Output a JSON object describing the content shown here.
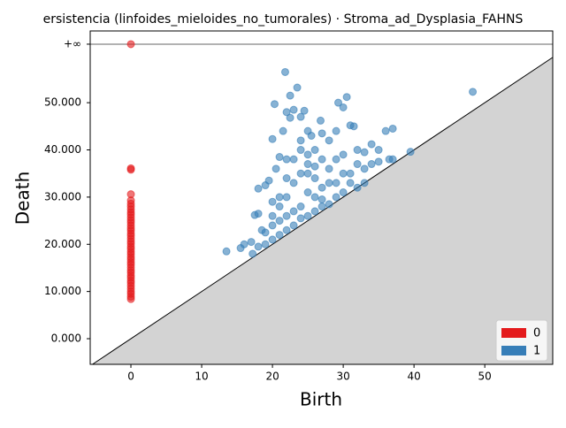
{
  "chart_data": {
    "type": "scatter",
    "title": "ersistencia (linfoides_mieloides_no_tumorales) · Stroma_ad_Dysplasia_FAHNS",
    "x_label": "Birth",
    "y_label": "Death",
    "xlim": [
      -5.75,
      59.6
    ],
    "ylim": [
      -5.43,
      65.2
    ],
    "xticks": [
      0,
      10,
      20,
      30,
      40,
      50
    ],
    "yticks": [
      {
        "value": 0,
        "label": "0.000"
      },
      {
        "value": 10,
        "label": "10.000"
      },
      {
        "value": 20,
        "label": "20.000"
      },
      {
        "value": 30,
        "label": "30.000"
      },
      {
        "value": 40,
        "label": "40.000"
      },
      {
        "value": 50,
        "label": "50.000"
      }
    ],
    "infinity": {
      "value": 62.4,
      "label": "+∞"
    },
    "legend": "lower right",
    "series": [
      {
        "name": "0",
        "color": "#e41a1c",
        "x": [
          0,
          0,
          0,
          0,
          0,
          0,
          0,
          0,
          0,
          0,
          0,
          0,
          0,
          0,
          0,
          0,
          0,
          0,
          0,
          0,
          0,
          0,
          0,
          0,
          0,
          0,
          0,
          0,
          0,
          0,
          0,
          0,
          0,
          0,
          0,
          0,
          0,
          0,
          0,
          0,
          0,
          0
        ],
        "values": [
          8.4,
          8.9,
          9.5,
          10,
          10.6,
          11.2,
          11.8,
          12.3,
          12.9,
          13.4,
          14,
          14.5,
          15.1,
          15.7,
          16.2,
          16.8,
          17.3,
          17.9,
          18.4,
          19,
          19.5,
          20.1,
          20.6,
          21.2,
          21.8,
          22.3,
          22.9,
          23.4,
          24,
          24.6,
          25.1,
          25.7,
          26.3,
          26.8,
          27.4,
          28,
          28.6,
          29.3,
          30.6,
          35.8,
          36.1,
          62.4
        ]
      },
      {
        "name": "1",
        "color": "#377eb8",
        "x": [
          13.5,
          15.5,
          16,
          17,
          17.2,
          17.5,
          18,
          18,
          18.5,
          19,
          19.5,
          20,
          20,
          20.3,
          20.5,
          21,
          21.5,
          21.8,
          22,
          22.5,
          22.5,
          23,
          23.5,
          24,
          24.5,
          25,
          25.5,
          26,
          26.8,
          27,
          28,
          29,
          29.3,
          30,
          30.5,
          31,
          31.5,
          32,
          33,
          34,
          35,
          36,
          37,
          39.5,
          48.3,
          36.5,
          34,
          33,
          32,
          31,
          30,
          29,
          28,
          27,
          26,
          25,
          24,
          23,
          22,
          21,
          20,
          19,
          18,
          22,
          23,
          24,
          25,
          26,
          27,
          28,
          29,
          30,
          24,
          25,
          26,
          23,
          22,
          21,
          20,
          19,
          21,
          22,
          24,
          25,
          27,
          28,
          26,
          23,
          24,
          25,
          27,
          29,
          31,
          33,
          35,
          37,
          30,
          32,
          21,
          20,
          22
        ],
        "values": [
          18.5,
          19.2,
          20,
          20.5,
          18,
          26.2,
          26.5,
          31.8,
          23,
          32.5,
          33.5,
          29,
          42.3,
          49.7,
          36,
          38.5,
          44,
          56.5,
          48,
          51.5,
          46.8,
          48.5,
          53.2,
          47,
          48.3,
          44,
          43,
          40,
          46.2,
          43.5,
          42,
          44,
          50,
          49,
          51.2,
          45.2,
          45,
          40,
          39.5,
          41.2,
          40,
          44,
          44.5,
          39.6,
          52.3,
          38,
          37,
          33,
          32,
          35,
          31,
          30,
          28.5,
          28,
          27,
          26,
          25.5,
          24,
          23,
          22,
          21,
          20,
          19.5,
          30,
          33,
          35,
          37,
          34,
          32,
          36,
          38,
          35,
          28,
          31,
          30,
          27,
          26,
          25,
          24,
          22.5,
          30,
          34,
          40,
          39,
          38,
          33,
          36.5,
          38,
          42,
          35,
          29.5,
          33,
          33,
          36,
          37.5,
          38,
          39,
          37,
          28,
          26,
          38
        ]
      }
    ]
  }
}
